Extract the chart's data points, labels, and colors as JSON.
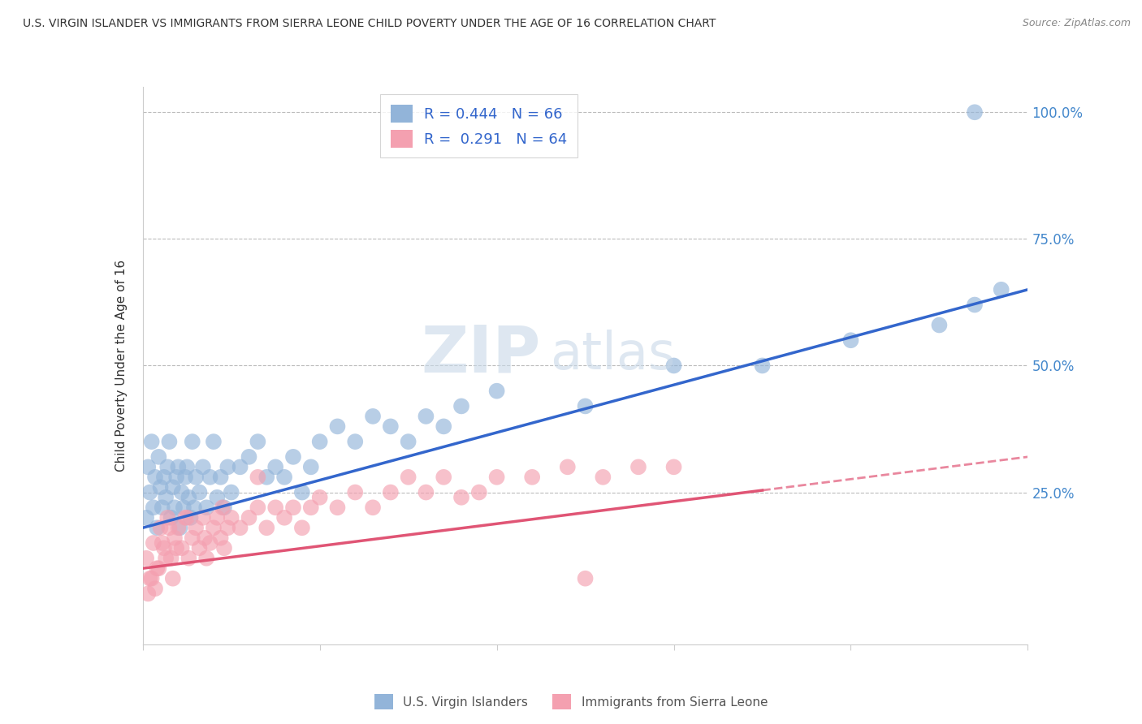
{
  "title": "U.S. VIRGIN ISLANDER VS IMMIGRANTS FROM SIERRA LEONE CHILD POVERTY UNDER THE AGE OF 16 CORRELATION CHART",
  "source": "Source: ZipAtlas.com",
  "ylabel": "Child Poverty Under the Age of 16",
  "xmin": 0.0,
  "xmax": 5.0,
  "ymin": -5.0,
  "ymax": 105.0,
  "yticks": [
    0,
    25,
    50,
    75,
    100
  ],
  "ytick_labels": [
    "",
    "25.0%",
    "50.0%",
    "75.0%",
    "100.0%"
  ],
  "blue_R": 0.444,
  "blue_N": 66,
  "pink_R": 0.291,
  "pink_N": 64,
  "blue_color": "#92B4D9",
  "pink_color": "#F4A0B0",
  "blue_line_color": "#3366CC",
  "pink_line_color": "#E05575",
  "legend1_label": "U.S. Virgin Islanders",
  "legend2_label": "Immigrants from Sierra Leone",
  "watermark_zip": "ZIP",
  "watermark_atlas": "atlas",
  "blue_trend_x0": 0.0,
  "blue_trend_y0": 18.0,
  "blue_trend_x1": 5.0,
  "blue_trend_y1": 65.0,
  "pink_trend_x0": 0.0,
  "pink_trend_y0": 10.0,
  "pink_trend_x1": 5.0,
  "pink_trend_y1": 32.0,
  "pink_dashed_x0": 3.5,
  "pink_dashed_x1": 5.0,
  "blue_scatter_x": [
    0.02,
    0.03,
    0.04,
    0.05,
    0.06,
    0.07,
    0.08,
    0.09,
    0.1,
    0.11,
    0.12,
    0.13,
    0.14,
    0.15,
    0.16,
    0.17,
    0.18,
    0.19,
    0.2,
    0.21,
    0.22,
    0.23,
    0.24,
    0.25,
    0.26,
    0.27,
    0.28,
    0.29,
    0.3,
    0.32,
    0.34,
    0.36,
    0.38,
    0.4,
    0.42,
    0.44,
    0.46,
    0.48,
    0.5,
    0.55,
    0.6,
    0.65,
    0.7,
    0.75,
    0.8,
    0.85,
    0.9,
    0.95,
    1.0,
    1.1,
    1.2,
    1.3,
    1.4,
    1.5,
    1.6,
    1.7,
    1.8,
    2.0,
    2.5,
    3.0,
    3.5,
    4.0,
    4.5,
    4.7,
    4.85,
    4.7
  ],
  "blue_scatter_y": [
    20,
    30,
    25,
    35,
    22,
    28,
    18,
    32,
    26,
    22,
    28,
    24,
    30,
    35,
    20,
    26,
    22,
    28,
    30,
    18,
    25,
    22,
    28,
    30,
    24,
    20,
    35,
    22,
    28,
    25,
    30,
    22,
    28,
    35,
    24,
    28,
    22,
    30,
    25,
    30,
    32,
    35,
    28,
    30,
    28,
    32,
    25,
    30,
    35,
    38,
    35,
    40,
    38,
    35,
    40,
    38,
    42,
    45,
    42,
    50,
    50,
    55,
    58,
    62,
    65,
    100
  ],
  "pink_scatter_x": [
    0.02,
    0.04,
    0.06,
    0.08,
    0.1,
    0.12,
    0.14,
    0.16,
    0.18,
    0.2,
    0.22,
    0.24,
    0.26,
    0.28,
    0.3,
    0.32,
    0.34,
    0.36,
    0.38,
    0.4,
    0.42,
    0.44,
    0.46,
    0.48,
    0.5,
    0.55,
    0.6,
    0.65,
    0.7,
    0.75,
    0.8,
    0.85,
    0.9,
    0.95,
    1.0,
    1.1,
    1.2,
    1.3,
    1.4,
    1.5,
    1.6,
    1.7,
    1.8,
    1.9,
    2.0,
    2.2,
    2.4,
    2.6,
    2.8,
    3.0,
    0.03,
    0.05,
    0.07,
    0.09,
    0.11,
    0.13,
    0.15,
    0.17,
    0.19,
    0.25,
    0.35,
    0.45,
    0.65,
    2.5
  ],
  "pink_scatter_y": [
    12,
    8,
    15,
    10,
    18,
    14,
    20,
    12,
    16,
    18,
    14,
    20,
    12,
    16,
    18,
    14,
    20,
    12,
    15,
    18,
    20,
    16,
    14,
    18,
    20,
    18,
    20,
    22,
    18,
    22,
    20,
    22,
    18,
    22,
    24,
    22,
    25,
    22,
    25,
    28,
    25,
    28,
    24,
    25,
    28,
    28,
    30,
    28,
    30,
    30,
    5,
    8,
    6,
    10,
    15,
    12,
    18,
    8,
    14,
    20,
    16,
    22,
    28,
    8
  ]
}
